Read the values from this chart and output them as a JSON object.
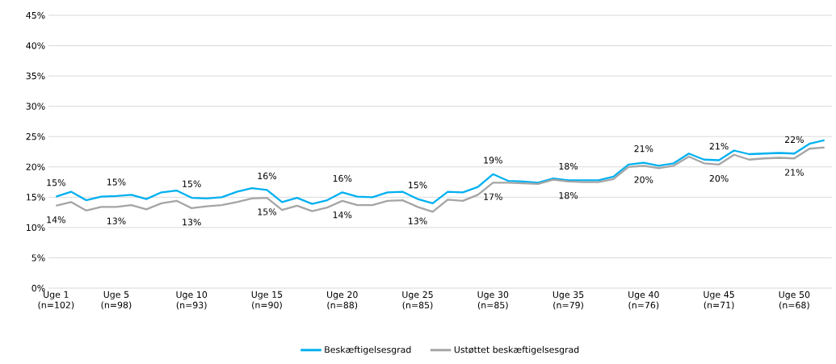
{
  "chart_data": {
    "type": "line",
    "categories": [
      "Uge 1 (n=102)",
      null,
      null,
      null,
      "Uge 5 (n=98)",
      null,
      null,
      null,
      null,
      "Uge 10 (n=93)",
      null,
      null,
      null,
      null,
      "Uge 15 (n=90)",
      null,
      null,
      null,
      null,
      "Uge 20 (n=88)",
      null,
      null,
      null,
      null,
      "Uge 25 (n=85)",
      null,
      null,
      null,
      null,
      "Uge 30 (n=85)",
      null,
      null,
      null,
      null,
      "Uge 35 (n=79)",
      null,
      null,
      null,
      null,
      "Uge 40 (n=76)",
      null,
      null,
      null,
      null,
      "Uge 45 (n=71)",
      null,
      null,
      null,
      null,
      "Uge 50 (n=68)",
      null,
      null
    ],
    "series": [
      {
        "name": "Beskæftigelsesgrad",
        "color": "#00b0f0",
        "values": [
          15.1,
          15.9,
          14.5,
          15.1,
          15.2,
          15.4,
          14.7,
          15.8,
          16.1,
          14.9,
          14.8,
          15.0,
          15.9,
          16.5,
          16.2,
          14.2,
          14.9,
          13.9,
          14.5,
          15.8,
          15.1,
          15.0,
          15.8,
          15.9,
          14.7,
          14.0,
          15.9,
          15.8,
          16.7,
          18.8,
          17.7,
          17.6,
          17.4,
          18.1,
          17.8,
          17.8,
          17.8,
          18.4,
          20.4,
          20.7,
          20.2,
          20.6,
          22.2,
          21.2,
          21.1,
          22.7,
          22.1,
          22.2,
          22.3,
          22.2,
          23.8,
          24.4
        ],
        "value_labels": [
          "15%",
          null,
          null,
          null,
          "15%",
          null,
          null,
          null,
          null,
          "15%",
          null,
          null,
          null,
          null,
          "16%",
          null,
          null,
          null,
          null,
          "16%",
          null,
          null,
          null,
          null,
          "15%",
          null,
          null,
          null,
          null,
          "19%",
          null,
          null,
          null,
          null,
          "18%",
          null,
          null,
          null,
          null,
          "21%",
          null,
          null,
          null,
          null,
          "21%",
          null,
          null,
          null,
          null,
          "22%",
          null,
          null
        ]
      },
      {
        "name": "Ustøttet beskæftigelsesgrad",
        "color": "#a5a5a5",
        "values": [
          13.6,
          14.2,
          12.8,
          13.4,
          13.4,
          13.7,
          13.0,
          14.0,
          14.4,
          13.2,
          13.5,
          13.7,
          14.2,
          14.8,
          14.9,
          12.9,
          13.6,
          12.7,
          13.3,
          14.4,
          13.7,
          13.7,
          14.4,
          14.5,
          13.4,
          12.6,
          14.6,
          14.4,
          15.4,
          17.4,
          17.4,
          17.3,
          17.2,
          17.9,
          17.6,
          17.5,
          17.5,
          18.0,
          20.0,
          20.2,
          19.8,
          20.2,
          21.7,
          20.6,
          20.4,
          22.0,
          21.2,
          21.4,
          21.5,
          21.4,
          23.0,
          23.2
        ],
        "value_labels": [
          "14%",
          null,
          null,
          null,
          "13%",
          null,
          null,
          null,
          null,
          "13%",
          null,
          null,
          null,
          null,
          "15%",
          null,
          null,
          null,
          null,
          "14%",
          null,
          null,
          null,
          null,
          "13%",
          null,
          null,
          null,
          null,
          "17%",
          null,
          null,
          null,
          null,
          "18%",
          null,
          null,
          null,
          null,
          "20%",
          null,
          null,
          null,
          null,
          "20%",
          null,
          null,
          null,
          null,
          "21%",
          null,
          null
        ]
      }
    ],
    "ylim": [
      0,
      45
    ],
    "yticks": [
      {
        "value": 0,
        "label": "0%"
      },
      {
        "value": 5,
        "label": "5%"
      },
      {
        "value": 10,
        "label": "10%"
      },
      {
        "value": 15,
        "label": "15%"
      },
      {
        "value": 20,
        "label": "20%"
      },
      {
        "value": 25,
        "label": "25%"
      },
      {
        "value": 30,
        "label": "30%"
      },
      {
        "value": 35,
        "label": "35%"
      },
      {
        "value": 40,
        "label": "40%"
      },
      {
        "value": 45,
        "label": "45%"
      }
    ],
    "grid": "y",
    "legend": "bottom",
    "marker": "none",
    "line_style": "solid"
  }
}
